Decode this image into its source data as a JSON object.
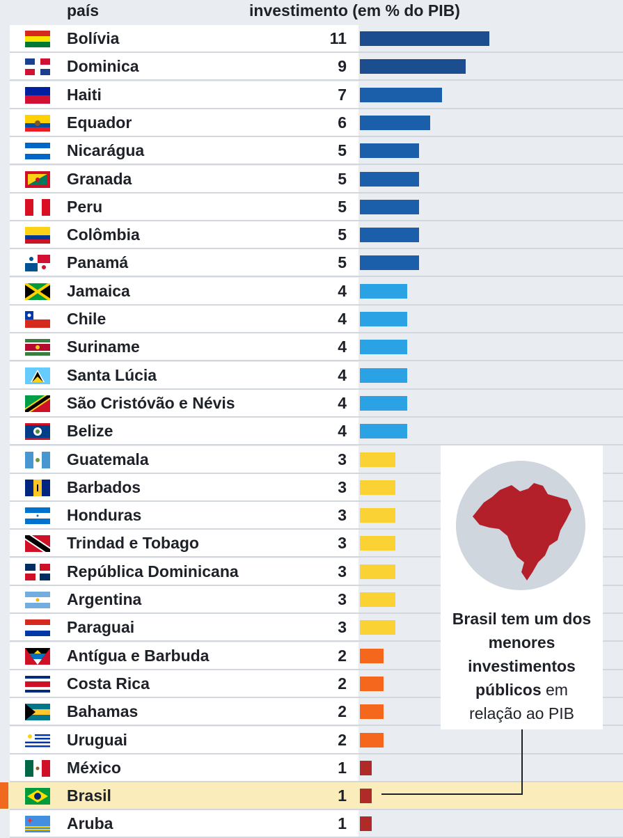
{
  "header": {
    "country_label": "país",
    "value_label": "investimento (em % do PIB)"
  },
  "chart_data": {
    "type": "bar",
    "orientation": "horizontal",
    "title": "",
    "xlabel": "investimento (em % do PIB)",
    "ylabel": "país",
    "xlim": [
      0,
      20
    ],
    "categories": [
      "Bolívia",
      "Dominica",
      "Haiti",
      "Equador",
      "Nicarágua",
      "Granada",
      "Peru",
      "Colômbia",
      "Panamá",
      "Jamaica",
      "Chile",
      "Suriname",
      "Santa Lúcia",
      "São Cristóvão e Névis",
      "Belize",
      "Guatemala",
      "Barbados",
      "Honduras",
      "Trindad e Tobago",
      "República Dominicana",
      "Argentina",
      "Paraguai",
      "Antígua e Barbuda",
      "Costa Rica",
      "Bahamas",
      "Uruguai",
      "México",
      "Brasil",
      "Aruba"
    ],
    "values": [
      11,
      9,
      7,
      6,
      5,
      5,
      5,
      5,
      5,
      4,
      4,
      4,
      4,
      4,
      4,
      3,
      3,
      3,
      3,
      3,
      3,
      3,
      2,
      2,
      2,
      2,
      1,
      1,
      1
    ],
    "highlight": "Brasil",
    "bar_colors": {
      "11": "#1c4d8f",
      "9": "#1c4d8f",
      "7": "#1b5eaa",
      "6": "#1b5eaa",
      "5": "#1b5eaa",
      "4": "#2ba2e3",
      "3": "#fbd234",
      "2": "#f4671c",
      "1": "#b12a2a"
    }
  },
  "flags": {
    "Bolívia": "bolivia-flag-icon",
    "Dominica": "dominican-style-flag-icon",
    "Haiti": "haiti-flag-icon",
    "Equador": "ecuador-flag-icon",
    "Nicarágua": "nicaragua-flag-icon",
    "Granada": "grenada-flag-icon",
    "Peru": "peru-flag-icon",
    "Colômbia": "colombia-flag-icon",
    "Panamá": "panama-flag-icon",
    "Jamaica": "jamaica-flag-icon",
    "Chile": "chile-flag-icon",
    "Suriname": "suriname-flag-icon",
    "Santa Lúcia": "saint-lucia-flag-icon",
    "São Cristóvão e Névis": "saint-kitts-flag-icon",
    "Belize": "belize-flag-icon",
    "Guatemala": "guatemala-flag-icon",
    "Barbados": "barbados-flag-icon",
    "Honduras": "honduras-flag-icon",
    "Trindad e Tobago": "trinidad-flag-icon",
    "República Dominicana": "dominican-republic-flag-icon",
    "Argentina": "argentina-flag-icon",
    "Paraguai": "paraguay-flag-icon",
    "Antígua e Barbuda": "antigua-flag-icon",
    "Costa Rica": "costa-rica-flag-icon",
    "Bahamas": "bahamas-flag-icon",
    "Uruguai": "uruguay-flag-icon",
    "México": "mexico-flag-icon",
    "Brasil": "brazil-flag-icon",
    "Aruba": "aruba-flag-icon"
  },
  "callout": {
    "map_icon": "brazil-map-icon",
    "line1_bold": "Brasil tem um dos",
    "line2_bold": "menores",
    "line3_bold": "investimentos",
    "line4_bold": "públicos",
    "line4_rest": " em",
    "line5": "relação ao PIB"
  }
}
